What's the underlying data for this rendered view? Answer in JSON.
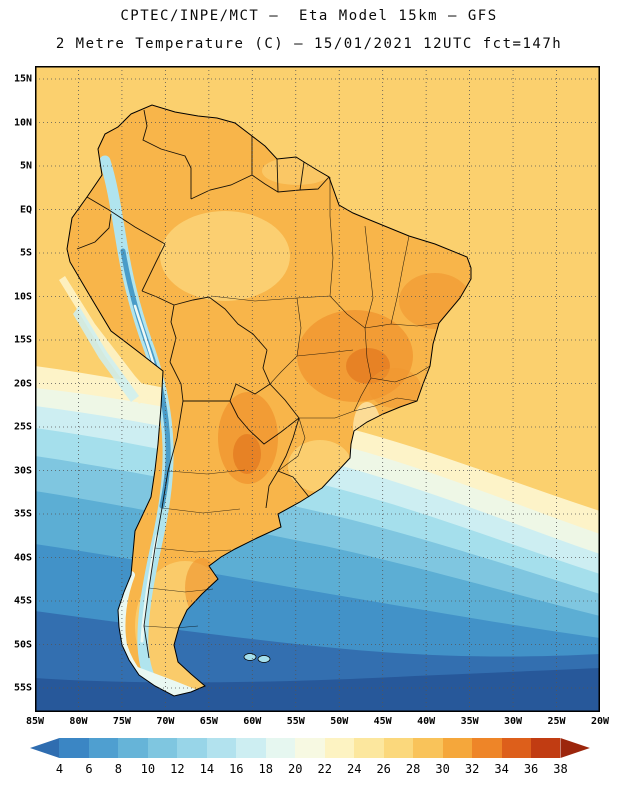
{
  "header": {
    "title_line1": "CPTEC/INPE/MCT –  Eta Model 15km – GFS",
    "title_line2": "2 Metre Temperature (C) – 15/01/2021 12UTC fct=147h"
  },
  "map": {
    "lat_labels": [
      "15N",
      "10N",
      "5N",
      "EQ",
      "5S",
      "10S",
      "15S",
      "20S",
      "25S",
      "30S",
      "35S",
      "40S",
      "45S",
      "50S",
      "55S"
    ],
    "lon_labels": [
      "85W",
      "80W",
      "75W",
      "70W",
      "65W",
      "60W",
      "55W",
      "50W",
      "45W",
      "40W",
      "35W",
      "30W",
      "25W",
      "20W"
    ],
    "colors": {
      "ocean_north": "#fbd06e",
      "ocean_cream": "#fdf3c8",
      "ocean_pale": "#eef7e6",
      "ocean_cyan1": "#cdeef2",
      "ocean_cyan2": "#a5dfec",
      "ocean_cyan3": "#7fc6e0",
      "ocean_steel": "#5caed4",
      "ocean_blue": "#4292c8",
      "ocean_deep": "#336fb0",
      "ocean_deepest": "#27589a",
      "land_base": "#f8b54a",
      "land_hot": "#f09630",
      "land_hotter": "#e2781f",
      "land_light": "#fbd478",
      "land_pale": "#fdedb6",
      "andes_cool": "#b0e4ee",
      "andes_cold": "#4a9cc8",
      "south_ice": "#eaf8f2",
      "grid": "#555555",
      "frame": "#000000"
    }
  },
  "colorbar": {
    "tick_labels": [
      "4",
      "6",
      "8",
      "10",
      "12",
      "14",
      "16",
      "18",
      "20",
      "22",
      "24",
      "26",
      "28",
      "30",
      "32",
      "34",
      "36",
      "38"
    ],
    "segment_colors": [
      "#2f6db0",
      "#3b86c4",
      "#4f9fd0",
      "#66b4d8",
      "#7fc6e0",
      "#98d5e8",
      "#b2e2ee",
      "#cdeef2",
      "#e6f7f0",
      "#f7f9e2",
      "#fdf3c2",
      "#fce79e",
      "#fbd87c",
      "#f9c35a",
      "#f5a73b",
      "#ee8528",
      "#dd5f1b",
      "#c13c12",
      "#9c260c"
    ]
  }
}
